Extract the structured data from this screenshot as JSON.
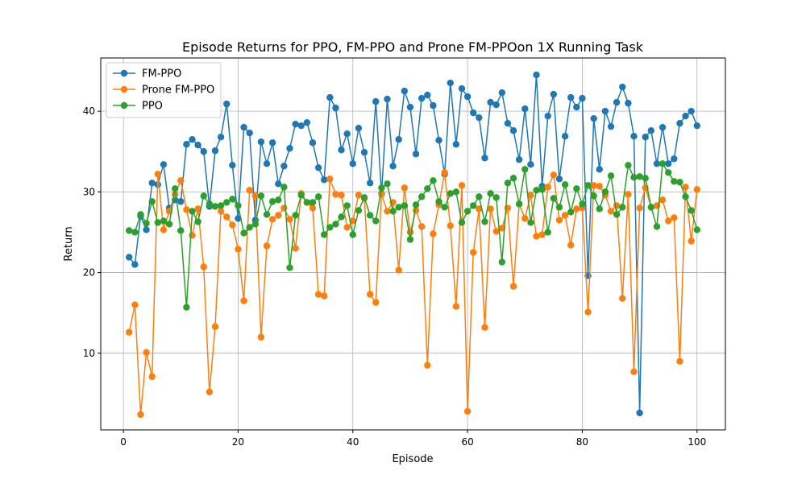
{
  "chart_data": {
    "type": "line",
    "title": "Episode Returns for PPO, FM-PPO and Prone FM-PPOon 1X Running Task",
    "xlabel": "Episode",
    "ylabel": "Return",
    "xlim": [
      -3.95,
      104.95
    ],
    "ylim": [
      0.5,
      46.6
    ],
    "x_ticks": [
      0,
      20,
      40,
      60,
      80,
      100
    ],
    "y_ticks": [
      10,
      20,
      30,
      40
    ],
    "grid": true,
    "legend_position": "top-left",
    "x": [
      1,
      2,
      3,
      4,
      5,
      6,
      7,
      8,
      9,
      10,
      11,
      12,
      13,
      14,
      15,
      16,
      17,
      18,
      19,
      20,
      21,
      22,
      23,
      24,
      25,
      26,
      27,
      28,
      29,
      30,
      31,
      32,
      33,
      34,
      35,
      36,
      37,
      38,
      39,
      40,
      41,
      42,
      43,
      44,
      45,
      46,
      47,
      48,
      49,
      50,
      51,
      52,
      53,
      54,
      55,
      56,
      57,
      58,
      59,
      60,
      61,
      62,
      63,
      64,
      65,
      66,
      67,
      68,
      69,
      70,
      71,
      72,
      73,
      74,
      75,
      76,
      77,
      78,
      79,
      80,
      81,
      82,
      83,
      84,
      85,
      86,
      87,
      88,
      89,
      90,
      91,
      92,
      93,
      94,
      95,
      96,
      97,
      98,
      99,
      100
    ],
    "series": [
      {
        "name": "FM-PPO",
        "color": "#1f77b4",
        "values": [
          21.9,
          21.0,
          27.0,
          25.3,
          31.1,
          30.9,
          33.4,
          28.0,
          29.0,
          28.8,
          35.9,
          36.5,
          35.8,
          35.0,
          28.2,
          35.1,
          36.8,
          40.9,
          33.3,
          26.7,
          38.0,
          37.3,
          26.5,
          36.2,
          33.5,
          36.1,
          31.0,
          33.2,
          35.4,
          38.4,
          38.2,
          38.6,
          36.1,
          33.0,
          31.5,
          41.7,
          40.4,
          35.2,
          37.2,
          33.5,
          37.9,
          34.9,
          31.1,
          41.2,
          29.8,
          41.5,
          33.2,
          36.5,
          42.5,
          40.5,
          34.7,
          41.6,
          42.0,
          40.7,
          36.4,
          32.2,
          43.5,
          35.9,
          42.8,
          41.8,
          39.8,
          39.2,
          34.2,
          41.1,
          40.8,
          42.3,
          38.5,
          37.6,
          34.0,
          40.3,
          33.4,
          44.5,
          30.7,
          39.4,
          42.1,
          31.6,
          36.9,
          41.7,
          40.5,
          41.6,
          19.6,
          39.1,
          32.8,
          40.0,
          38.1,
          41.1,
          43.0,
          41.0,
          36.9,
          2.6,
          36.8,
          37.6,
          33.5,
          38.0,
          33.5,
          34.1,
          38.5,
          39.4,
          40.0,
          38.2
        ]
      },
      {
        "name": "Prone FM-PPO",
        "color": "#ff7f0e",
        "values": [
          12.6,
          16.0,
          2.4,
          10.1,
          7.1,
          32.2,
          25.3,
          27.6,
          29.7,
          31.4,
          27.8,
          24.6,
          27.9,
          20.7,
          5.2,
          13.3,
          27.6,
          26.9,
          25.9,
          22.9,
          16.5,
          30.2,
          29.5,
          12.0,
          23.3,
          26.6,
          27.1,
          28.0,
          26.6,
          23.0,
          29.8,
          28.7,
          28.0,
          17.3,
          17.1,
          31.6,
          29.7,
          29.6,
          25.6,
          26.4,
          29.6,
          29.2,
          17.3,
          16.3,
          29.7,
          27.6,
          28.7,
          20.3,
          30.5,
          25.0,
          27.7,
          25.7,
          8.5,
          24.8,
          28.4,
          32.4,
          25.8,
          15.8,
          30.8,
          2.8,
          22.5,
          27.9,
          13.2,
          27.9,
          25.1,
          25.5,
          28.0,
          18.3,
          28.5,
          26.7,
          29.6,
          24.5,
          24.7,
          30.6,
          32.1,
          26.5,
          27.1,
          23.4,
          27.9,
          28.0,
          15.1,
          30.8,
          30.7,
          29.6,
          27.6,
          28.3,
          16.8,
          29.7,
          7.7,
          28.0,
          30.5,
          28.1,
          28.3,
          29.0,
          26.4,
          26.8,
          9.0,
          30.6,
          23.9,
          30.3
        ]
      },
      {
        "name": "PPO",
        "color": "#2ca02c",
        "values": [
          25.2,
          25.0,
          27.2,
          26.1,
          28.8,
          26.2,
          26.4,
          26.0,
          30.4,
          25.2,
          15.7,
          27.6,
          26.3,
          29.5,
          28.5,
          28.2,
          28.3,
          28.7,
          29.1,
          28.3,
          24.9,
          25.6,
          26.0,
          29.5,
          27.2,
          28.8,
          29.0,
          30.6,
          20.6,
          27.1,
          29.6,
          28.7,
          28.7,
          29.4,
          24.7,
          25.6,
          26.0,
          26.9,
          28.3,
          24.7,
          27.7,
          29.3,
          27.1,
          26.4,
          30.5,
          31.0,
          27.6,
          28.1,
          28.3,
          24.1,
          28.4,
          29.4,
          30.4,
          31.4,
          28.8,
          28.1,
          29.8,
          30.0,
          26.2,
          27.6,
          28.3,
          29.4,
          26.3,
          29.8,
          29.3,
          21.3,
          31.1,
          31.7,
          28.5,
          32.8,
          26.2,
          30.2,
          30.3,
          25.0,
          29.2,
          28.1,
          30.9,
          27.5,
          30.4,
          28.5,
          30.8,
          29.5,
          27.9,
          30.0,
          32.0,
          27.2,
          28.1,
          33.3,
          31.8,
          31.9,
          31.7,
          28.1,
          25.7,
          33.5,
          32.4,
          31.3,
          31.2,
          29.4,
          27.7,
          25.3
        ]
      }
    ]
  }
}
